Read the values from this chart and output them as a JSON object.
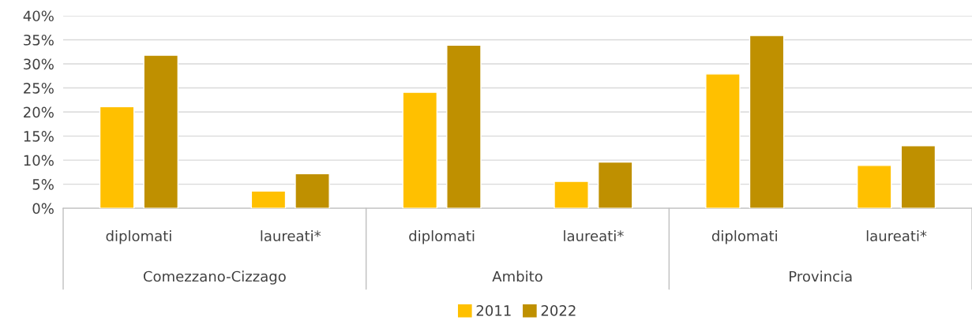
{
  "chart_data": {
    "type": "bar",
    "categories": [
      "diplomati",
      "laureati*",
      "diplomati",
      "laureati*",
      "diplomati",
      "laureati*"
    ],
    "series": [
      {
        "name": "2011",
        "color": "#ffc000",
        "values": [
          21.1,
          3.6,
          24.1,
          5.6,
          27.9,
          8.9
        ]
      },
      {
        "name": "2022",
        "color": "#bf9000",
        "values": [
          31.8,
          7.2,
          33.9,
          9.6,
          35.9,
          13.0
        ]
      }
    ],
    "annotations": [
      "Comezzano-Cizzago",
      "Ambito",
      "Provincia"
    ],
    "ylim": [
      0,
      40
    ],
    "yticks": [
      {
        "value": 0,
        "label": "0%"
      },
      {
        "value": 5,
        "label": "5%"
      },
      {
        "value": 10,
        "label": "10%"
      },
      {
        "value": 15,
        "label": "15%"
      },
      {
        "value": 20,
        "label": "20%"
      },
      {
        "value": 25,
        "label": "25%"
      },
      {
        "value": 30,
        "label": "30%"
      },
      {
        "value": 35,
        "label": "35%"
      },
      {
        "value": 40,
        "label": "40%"
      }
    ],
    "grid": "y",
    "legend": "bottom"
  }
}
